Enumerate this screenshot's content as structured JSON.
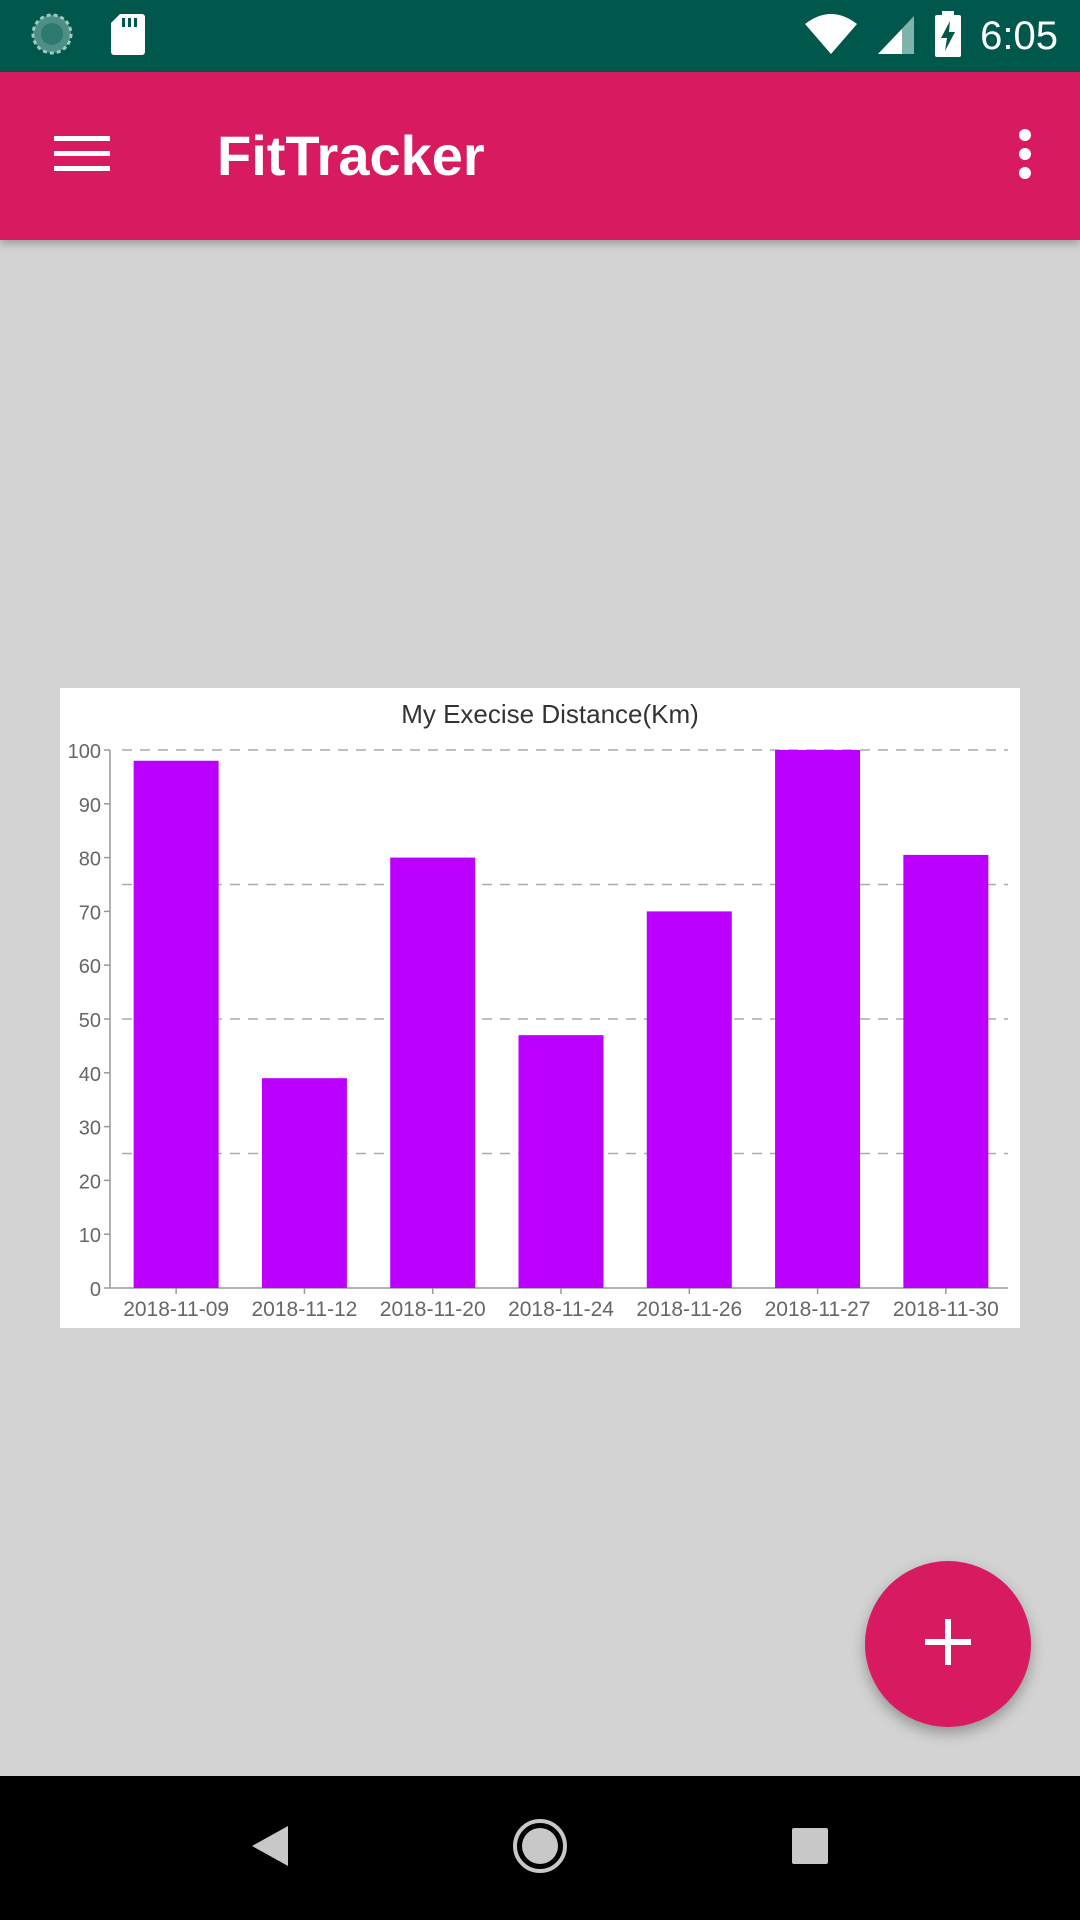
{
  "status_bar": {
    "time": "6:05",
    "icons": [
      "sync-icon",
      "sd-card-icon",
      "wifi-icon",
      "signal-icon",
      "battery-charging-icon"
    ]
  },
  "app_bar": {
    "title": "FitTracker",
    "menu_icon": "hamburger-menu-icon",
    "overflow_icon": "more-vert-icon",
    "background_color": "#d81b60"
  },
  "chart_data": {
    "type": "bar",
    "title": "My Execise Distance(Km)",
    "categories": [
      "2018-11-09",
      "2018-11-12",
      "2018-11-20",
      "2018-11-24",
      "2018-11-26",
      "2018-11-27",
      "2018-11-30"
    ],
    "values": [
      98,
      39,
      80,
      47,
      70,
      100,
      80.5
    ],
    "ylim": [
      0,
      100
    ],
    "yticks": [
      0,
      10,
      20,
      30,
      40,
      50,
      60,
      70,
      80,
      90,
      100
    ],
    "gridlines": [
      25,
      50,
      75,
      100
    ],
    "bar_color": "#bb00ff",
    "grid": true
  },
  "fab": {
    "icon": "plus-icon",
    "color": "#d81b60"
  },
  "nav_bar": {
    "icons": [
      "back-icon",
      "home-icon",
      "recents-icon"
    ]
  }
}
